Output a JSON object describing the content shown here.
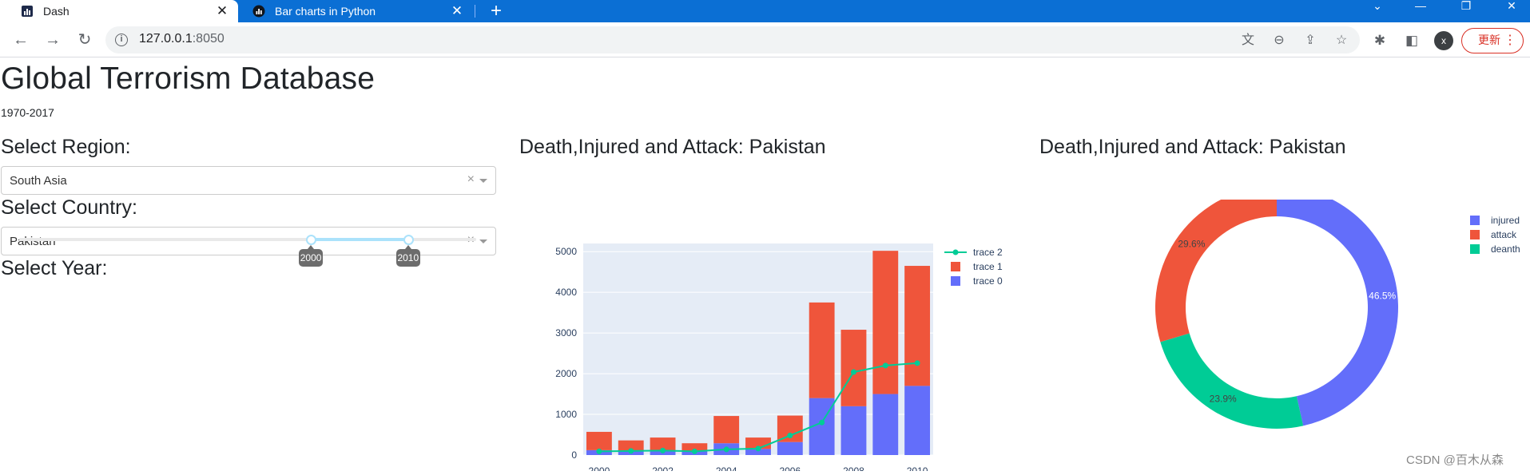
{
  "browser": {
    "tabs": [
      {
        "label": "Dash",
        "active": true
      },
      {
        "label": "Bar charts in Python",
        "active": false
      }
    ],
    "url_host": "127.0.0.1",
    "url_port": ":8050",
    "update_label": "更新",
    "avatar_letter": "x",
    "accent_color": "#0b6fd4"
  },
  "page": {
    "title": "Global Terrorism Database",
    "subtitle": "1970-2017",
    "region_label": "Select Region:",
    "region_value": "South Asia",
    "country_label": "Select Country:",
    "country_value": "Pakistan",
    "year_label": "Select Year:",
    "year_slider": {
      "min": 1970,
      "max": 2017,
      "selected": [
        2000,
        2010
      ]
    }
  },
  "chart_data": [
    {
      "type": "bar",
      "title": "Death,Injured and Attack: Pakistan",
      "barmode": "stack",
      "x": [
        2000,
        2001,
        2002,
        2003,
        2004,
        2005,
        2006,
        2007,
        2008,
        2009,
        2010
      ],
      "x_ticks": [
        "2000",
        "2002",
        "2004",
        "2006",
        "2008",
        "2010"
      ],
      "y_ticks": [
        "0",
        "1000",
        "2000",
        "3000",
        "4000",
        "5000"
      ],
      "ylim": [
        0,
        5200
      ],
      "legend_position": "top-right",
      "series": [
        {
          "name": "trace 0",
          "type": "bar",
          "color": "#636efa",
          "values": [
            120,
            100,
            110,
            90,
            290,
            150,
            320,
            1400,
            1200,
            1500,
            1700
          ]
        },
        {
          "name": "trace 1",
          "type": "bar",
          "color": "#ef553b",
          "values": [
            450,
            260,
            320,
            200,
            670,
            280,
            650,
            2350,
            1880,
            3520,
            2950
          ]
        },
        {
          "name": "trace 2",
          "type": "line",
          "color": "#00cc96",
          "values": [
            90,
            100,
            110,
            90,
            140,
            160,
            480,
            800,
            2040,
            2200,
            2260
          ]
        }
      ]
    },
    {
      "type": "pie",
      "title": "Death,Injured and Attack: Pakistan",
      "hole": 0.75,
      "legend_position": "top-right",
      "slices": [
        {
          "label": "injured",
          "value": 46.5,
          "text": "46.5%",
          "color": "#636efa"
        },
        {
          "label": "deanth",
          "value": 23.9,
          "text": "23.9%",
          "color": "#00cc96"
        },
        {
          "label": "attack",
          "value": 29.6,
          "text": "29.6%",
          "color": "#ef553b"
        }
      ],
      "legend_order": [
        "injured",
        "attack",
        "deanth"
      ]
    }
  ],
  "watermark": "CSDN @百木从森"
}
